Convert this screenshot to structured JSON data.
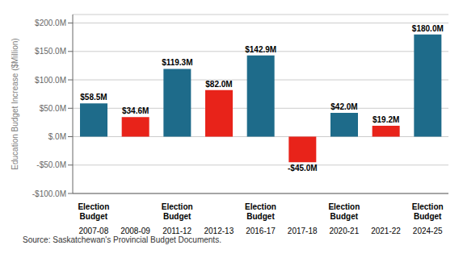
{
  "chart_data": {
    "type": "bar",
    "categories": [
      "2007-08",
      "2008-09",
      "2011-12",
      "2012-13",
      "2016-17",
      "2017-18",
      "2020-21",
      "2021-22",
      "2024-25"
    ],
    "values": [
      58.5,
      34.6,
      119.3,
      82.0,
      142.9,
      -45.0,
      42.0,
      19.2,
      180.0
    ],
    "value_labels": [
      "$58.5M",
      "$34.6M",
      "$119.3M",
      "$82.0M",
      "$142.9M",
      "-$45.0M",
      "$42.0M",
      "$19.2M",
      "$180.0M"
    ],
    "colors": [
      "#1e6b8a",
      "#e8231a",
      "#1e6b8a",
      "#e8231a",
      "#1e6b8a",
      "#e8231a",
      "#1e6b8a",
      "#e8231a",
      "#1e6b8a"
    ],
    "annotations": [
      "Election\nBudget",
      null,
      "Election\nBudget",
      null,
      "Election\nBudget",
      null,
      "Election\nBudget",
      null,
      "Election\nBudget"
    ],
    "ylabel": "Education Budget Increase ($Million)",
    "ylim": [
      -100,
      215
    ],
    "yticks": [
      {
        "value": -100,
        "label": "-$100.0M"
      },
      {
        "value": -50,
        "label": "-$50.0M"
      },
      {
        "value": 0,
        "label": "$.0M"
      },
      {
        "value": 50,
        "label": "$50.0M"
      },
      {
        "value": 100,
        "label": "$100.0M"
      },
      {
        "value": 150,
        "label": "$150.0M"
      },
      {
        "value": 200,
        "label": "$200.0M"
      }
    ],
    "grid": true,
    "data_labels": true,
    "source": "Source: Saskatchewan's Provincial Budget Documents."
  }
}
